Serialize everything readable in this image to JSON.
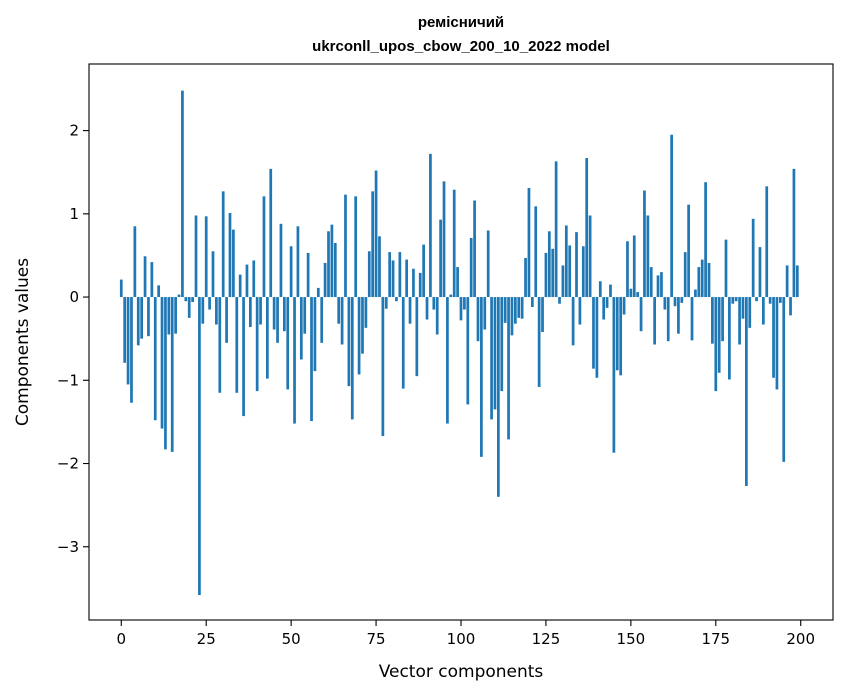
{
  "chart_data": {
    "type": "bar",
    "title_line1": "ремісничий",
    "title_line2": "ukrconll_upos_cbow_200_10_2022 model",
    "xlabel": "Vector components",
    "ylabel": "Components values",
    "xlim": [
      -9.5,
      209.5
    ],
    "ylim": [
      -3.88,
      2.8
    ],
    "xticks": [
      0,
      25,
      50,
      75,
      100,
      125,
      150,
      175,
      200
    ],
    "yticks": [
      -3,
      -2,
      -1,
      0,
      1,
      2
    ],
    "ytick_labels": [
      "−3",
      "−2",
      "−1",
      "0",
      "1",
      "2"
    ],
    "grid": false,
    "color": "#1f77b4",
    "values": [
      0.21,
      -0.79,
      -1.05,
      -1.27,
      0.85,
      -0.58,
      -0.5,
      0.49,
      -0.47,
      0.42,
      -1.48,
      0.14,
      -1.58,
      -1.83,
      -0.45,
      -1.86,
      -0.44,
      0.03,
      2.48,
      -0.05,
      -0.25,
      -0.06,
      0.98,
      -3.58,
      -0.32,
      0.97,
      -0.15,
      0.55,
      -0.33,
      -1.15,
      1.27,
      -0.55,
      1.01,
      0.81,
      -1.15,
      0.27,
      -1.43,
      0.39,
      -0.36,
      0.44,
      -1.13,
      -0.33,
      1.21,
      -0.98,
      1.54,
      -0.39,
      -0.55,
      0.88,
      -0.41,
      -1.11,
      0.61,
      -1.52,
      0.85,
      -0.75,
      -0.44,
      0.53,
      -1.49,
      -0.89,
      0.11,
      -0.55,
      0.41,
      0.79,
      0.87,
      0.65,
      -0.32,
      -0.57,
      1.23,
      -1.07,
      -1.47,
      1.21,
      -0.93,
      -0.68,
      -0.37,
      0.55,
      1.27,
      1.52,
      0.73,
      -1.67,
      -0.14,
      0.54,
      0.44,
      -0.05,
      0.54,
      -1.1,
      0.45,
      -0.32,
      0.34,
      -0.95,
      0.29,
      0.63,
      -0.27,
      1.72,
      -0.15,
      -0.45,
      0.93,
      1.39,
      -1.52,
      0.03,
      1.29,
      0.36,
      -0.28,
      -0.15,
      -1.29,
      0.71,
      1.16,
      -0.53,
      -1.92,
      -0.39,
      0.8,
      -1.47,
      -1.35,
      -2.4,
      -1.13,
      -0.31,
      -1.71,
      -0.46,
      -0.32,
      -0.25,
      -0.26,
      0.47,
      1.31,
      -0.12,
      1.09,
      -1.08,
      -0.42,
      0.53,
      0.79,
      0.58,
      1.63,
      -0.08,
      0.38,
      0.86,
      0.62,
      -0.58,
      0.78,
      -0.33,
      0.61,
      1.67,
      0.98,
      -0.86,
      -0.97,
      0.19,
      -0.27,
      -0.13,
      0.15,
      -1.87,
      -0.88,
      -0.94,
      -0.21,
      0.67,
      0.1,
      0.74,
      0.06,
      -0.41,
      1.28,
      0.98,
      0.36,
      -0.57,
      0.26,
      0.3,
      -0.15,
      -0.53,
      1.95,
      -0.11,
      -0.44,
      -0.07,
      0.54,
      1.11,
      -0.52,
      0.09,
      0.36,
      0.45,
      1.38,
      0.41,
      -0.56,
      -1.13,
      -0.91,
      -0.53,
      0.69,
      -0.99,
      -0.08,
      -0.05,
      -0.57,
      -0.26,
      -2.27,
      -0.37,
      0.94,
      -0.05,
      0.6,
      -0.33,
      1.33,
      -0.08,
      -0.97,
      -1.11,
      -0.07,
      -1.98,
      0.38,
      -0.22,
      1.54,
      0.38
    ]
  }
}
